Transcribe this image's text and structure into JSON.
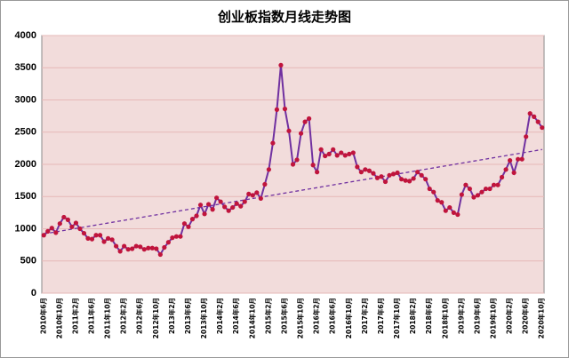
{
  "chart_data": {
    "type": "line",
    "title": "创业板指数月线走势图",
    "categories": [
      "2010年6月",
      null,
      null,
      null,
      "2010年10月",
      null,
      null,
      null,
      "2011年2月",
      null,
      null,
      null,
      "2011年6月",
      null,
      null,
      null,
      "2011年10月",
      null,
      null,
      null,
      "2012年2月",
      null,
      null,
      null,
      "2012年6月",
      null,
      null,
      null,
      "2012年10月",
      null,
      null,
      null,
      "2013年2月",
      null,
      null,
      null,
      "2013年6月",
      null,
      null,
      null,
      "2013年10月",
      null,
      null,
      null,
      "2014年2月",
      null,
      null,
      null,
      "2014年6月",
      null,
      null,
      null,
      "2014年10月",
      null,
      null,
      null,
      "2015年2月",
      null,
      null,
      null,
      "2015年6月",
      null,
      null,
      null,
      "2015年10月",
      null,
      null,
      null,
      "2016年2月",
      null,
      null,
      null,
      "2016年6月",
      null,
      null,
      null,
      "2016年10月",
      null,
      null,
      null,
      "2017年2月",
      null,
      null,
      null,
      "2017年6月",
      null,
      null,
      null,
      "2017年10月",
      null,
      null,
      null,
      "2018年2月",
      null,
      null,
      null,
      "2018年6月",
      null,
      null,
      null,
      "2018年10月",
      null,
      null,
      null,
      "2019年2月",
      null,
      null,
      null,
      "2019年6月",
      null,
      null,
      null,
      "2019年10月",
      null,
      null,
      null,
      "2020年2月",
      null,
      null,
      null,
      "2020年6月",
      null,
      null,
      null,
      "2020年10月"
    ],
    "series": [
      {
        "color": "#7030a0",
        "marker_color": "#c0143c",
        "values": [
          900,
          960,
          1010,
          940,
          1080,
          1180,
          1140,
          1030,
          1090,
          1000,
          930,
          850,
          840,
          900,
          900,
          800,
          850,
          830,
          730,
          650,
          730,
          680,
          690,
          730,
          720,
          680,
          700,
          700,
          690,
          600,
          710,
          790,
          860,
          880,
          880,
          1080,
          1030,
          1150,
          1200,
          1370,
          1230,
          1380,
          1300,
          1480,
          1420,
          1340,
          1280,
          1330,
          1390,
          1350,
          1420,
          1540,
          1520,
          1560,
          1470,
          1690,
          1920,
          2330,
          2850,
          3540,
          2860,
          2520,
          2000,
          2070,
          2480,
          2660,
          2710,
          1990,
          1880,
          2230,
          2130,
          2160,
          2230,
          2140,
          2180,
          2140,
          2160,
          2180,
          1960,
          1880,
          1920,
          1900,
          1860,
          1790,
          1810,
          1730,
          1830,
          1850,
          1870,
          1770,
          1750,
          1740,
          1780,
          1880,
          1830,
          1770,
          1620,
          1570,
          1440,
          1410,
          1280,
          1330,
          1250,
          1220,
          1530,
          1680,
          1620,
          1490,
          1520,
          1570,
          1620,
          1620,
          1680,
          1680,
          1800,
          1920,
          2060,
          1870,
          2080,
          2080,
          2430,
          2790,
          2740,
          2660,
          2570
        ]
      }
    ],
    "trendline": {
      "color": "#7030a0",
      "values": [
        920,
        2230
      ]
    },
    "ylim": [
      0,
      4000
    ],
    "yticks": [
      0,
      500,
      1000,
      1500,
      2000,
      2500,
      3000,
      3500,
      4000
    ],
    "grid": true
  }
}
